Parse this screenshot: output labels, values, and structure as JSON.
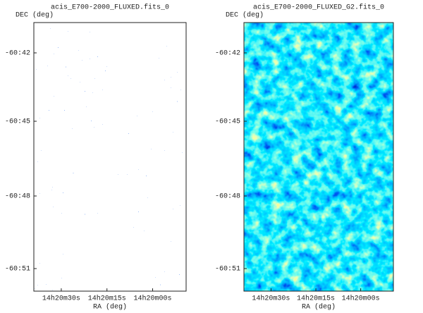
{
  "panels": [
    {
      "title": "acis_E700-2000_FLUXED.fits_0",
      "y_label": "DEC (deg)",
      "x_label": "RA (deg)",
      "y_ticks": [
        "-60:42",
        "-60:45",
        "-60:48",
        "-60:51"
      ],
      "x_ticks": [
        "14h20m30s",
        "14h20m15s",
        "14h20m00s"
      ]
    },
    {
      "title": "acis_E700-2000_FLUXED_G2.fits_0",
      "y_label": "DEC (deg)",
      "x_label": "RA (deg)",
      "y_ticks": [
        "-60:42",
        "-60:45",
        "-60:48",
        "-60:51"
      ],
      "x_ticks": [
        "14h20m30s",
        "14h20m15s",
        "14h20m00s"
      ]
    }
  ]
}
